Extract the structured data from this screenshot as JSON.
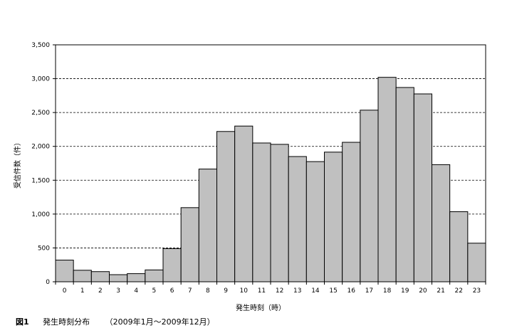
{
  "caption": {
    "figure_label": "図1",
    "title": "発生時刻分布",
    "period": "（2009年1月～2009年12月）"
  },
  "chart_data": {
    "type": "bar",
    "xlabel": "発生時刻（時）",
    "ylabel": "受信件数（件）",
    "ylim": [
      0,
      3500
    ],
    "yticks": [
      0,
      500,
      1000,
      1500,
      2000,
      2500,
      3000,
      3500
    ],
    "ytick_labels": [
      "0",
      "500",
      "1,000",
      "1,500",
      "2,000",
      "2,500",
      "3,000",
      "3,500"
    ],
    "grid": "horizontal-dashed",
    "bar_color": "#c0c0c0",
    "categories": [
      "0",
      "1",
      "2",
      "3",
      "4",
      "5",
      "6",
      "7",
      "8",
      "9",
      "10",
      "11",
      "12",
      "13",
      "14",
      "15",
      "16",
      "17",
      "18",
      "19",
      "20",
      "21",
      "22",
      "23"
    ],
    "values": [
      320,
      170,
      150,
      105,
      120,
      175,
      490,
      1095,
      1665,
      2220,
      2300,
      2050,
      2030,
      1850,
      1775,
      1915,
      2060,
      2535,
      3020,
      2870,
      2775,
      1730,
      1035,
      570
    ]
  }
}
